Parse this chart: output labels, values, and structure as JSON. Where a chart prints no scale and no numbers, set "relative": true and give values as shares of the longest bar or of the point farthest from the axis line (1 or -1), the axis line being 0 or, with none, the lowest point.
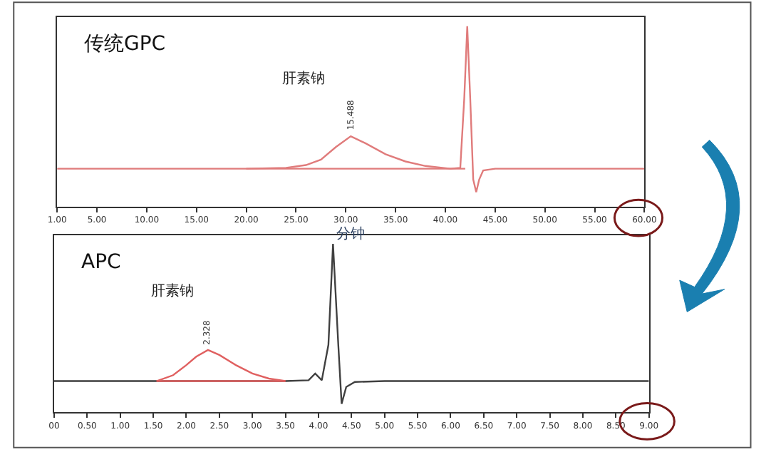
{
  "chart_data": [
    {
      "type": "line",
      "title": "传统GPC",
      "xlabel": "分钟",
      "relative": true,
      "marker": "none",
      "line_style": "solid",
      "xlim": [
        1.0,
        60.0
      ],
      "xticks": [
        {
          "value": 1,
          "label": "1.00"
        },
        {
          "value": 5,
          "label": "5.00"
        },
        {
          "value": 10,
          "label": "10.00"
        },
        {
          "value": 15,
          "label": "15.00"
        },
        {
          "value": 20,
          "label": "20.00"
        },
        {
          "value": 25,
          "label": "25.00"
        },
        {
          "value": 30,
          "label": "30.00"
        },
        {
          "value": 35,
          "label": "35.00"
        },
        {
          "value": 40,
          "label": "40.00"
        },
        {
          "value": 45,
          "label": "45.00"
        },
        {
          "value": 50,
          "label": "50.00"
        },
        {
          "value": 55,
          "label": "55.00"
        },
        {
          "value": 60,
          "label": "60.00"
        }
      ],
      "series": [
        {
          "color": "#e07b7b",
          "x": [
            1.0,
            20.0,
            24.0,
            26.0,
            27.5,
            29.0,
            30.5,
            32.0,
            34.0,
            36.0,
            38.0,
            40.5,
            41.5,
            41.9,
            42.2,
            42.5,
            42.8,
            43.1,
            43.4,
            43.8,
            45.0,
            60.0
          ],
          "values": [
            0.21,
            0.21,
            0.215,
            0.23,
            0.26,
            0.33,
            0.39,
            0.35,
            0.29,
            0.25,
            0.225,
            0.21,
            0.215,
            0.6,
            1.0,
            0.6,
            0.15,
            0.08,
            0.15,
            0.2,
            0.21,
            0.21
          ]
        },
        {
          "color": "#e07b7b",
          "x": [
            20.0,
            42.0
          ],
          "values": [
            0.21,
            0.21
          ]
        }
      ],
      "annotations": [
        "肝素钠",
        {
          "text": "15.488",
          "x": 30.5,
          "y": 0.39
        }
      ]
    },
    {
      "type": "line",
      "title": "APC",
      "relative": true,
      "marker": "none",
      "line_style": "solid",
      "xlim": [
        0.0,
        9.0
      ],
      "xticks": [
        {
          "value": 0,
          "label": "00"
        },
        {
          "value": 0.5,
          "label": "0.50"
        },
        {
          "value": 1,
          "label": "1.00"
        },
        {
          "value": 1.5,
          "label": "1.50"
        },
        {
          "value": 2,
          "label": "2.00"
        },
        {
          "value": 2.5,
          "label": "2.50"
        },
        {
          "value": 3,
          "label": "3.00"
        },
        {
          "value": 3.5,
          "label": "3.50"
        },
        {
          "value": 4,
          "label": "4.00"
        },
        {
          "value": 4.5,
          "label": "4.50"
        },
        {
          "value": 5,
          "label": "5.00"
        },
        {
          "value": 5.5,
          "label": "5.50"
        },
        {
          "value": 6,
          "label": "6.00"
        },
        {
          "value": 6.5,
          "label": "6.50"
        },
        {
          "value": 7,
          "label": "7.00"
        },
        {
          "value": 7.5,
          "label": "7.50"
        },
        {
          "value": 8,
          "label": "8.00"
        },
        {
          "value": 8.5,
          "label": "8.50"
        },
        {
          "value": 9,
          "label": "9.00"
        }
      ],
      "series": [
        {
          "color": "#404040",
          "x": [
            0.0,
            1.55,
            3.5,
            3.85,
            3.95,
            4.05,
            4.15,
            4.22,
            4.3,
            4.35,
            4.42,
            4.55,
            5.0,
            9.0
          ],
          "values": [
            0.185,
            0.185,
            0.185,
            0.19,
            0.23,
            0.19,
            0.4,
            1.0,
            0.4,
            0.05,
            0.15,
            0.18,
            0.185,
            0.185
          ]
        },
        {
          "color": "#e06060",
          "x": [
            1.55,
            1.8,
            2.0,
            2.15,
            2.328,
            2.5,
            2.75,
            3.0,
            3.25,
            3.5
          ],
          "values": [
            0.185,
            0.22,
            0.28,
            0.33,
            0.37,
            0.34,
            0.28,
            0.23,
            0.2,
            0.185
          ]
        },
        {
          "color": "#e06060",
          "x": [
            1.55,
            3.5
          ],
          "values": [
            0.185,
            0.185
          ]
        }
      ],
      "annotations": [
        "肝素钠",
        {
          "text": "2.328",
          "x": 2.328,
          "y": 0.37
        }
      ]
    }
  ]
}
